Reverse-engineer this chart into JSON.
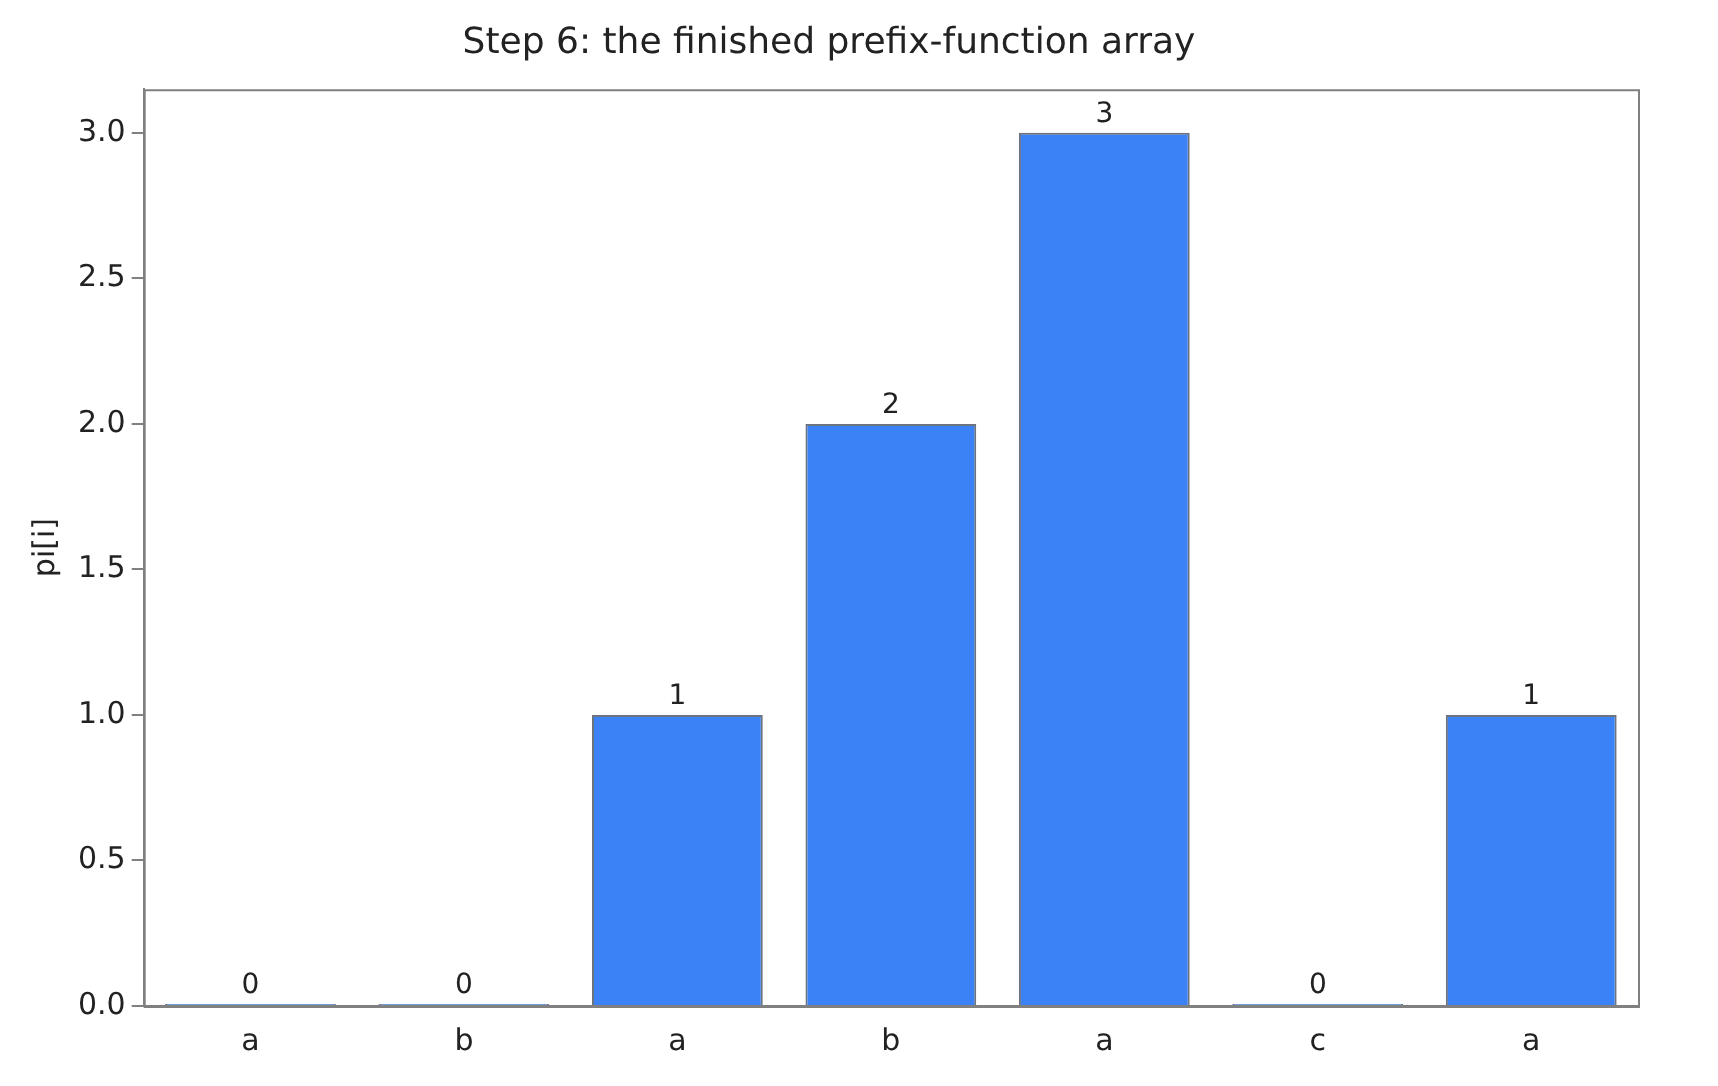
{
  "chart_data": {
    "type": "bar",
    "title": "Step 6: the finished prefix-function array",
    "ylabel": "pi[i]",
    "categories": [
      "a",
      "b",
      "a",
      "b",
      "a",
      "c",
      "a"
    ],
    "values": [
      0,
      0,
      1,
      2,
      3,
      0,
      1
    ],
    "color": "#3b82f6",
    "ylim": [
      0,
      3.15
    ],
    "yticks": [
      {
        "value": 0,
        "label": "0.0"
      },
      {
        "value": 0.5,
        "label": "0.5"
      },
      {
        "value": 1,
        "label": "1.0"
      },
      {
        "value": 1.5,
        "label": "1.5"
      },
      {
        "value": 2,
        "label": "2.0"
      },
      {
        "value": 2.5,
        "label": "2.5"
      },
      {
        "value": 3,
        "label": "3.0"
      }
    ],
    "grid": false,
    "legend": false,
    "data_labels": true
  }
}
